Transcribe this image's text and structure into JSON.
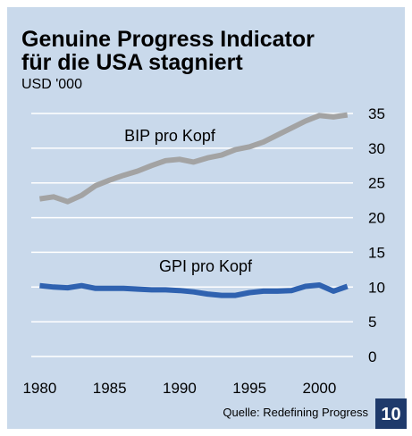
{
  "chart_data": {
    "type": "line",
    "title": [
      "Genuine Progress Indicator",
      "für die USA stagniert"
    ],
    "subtitle": "USD '000",
    "x": [
      1980,
      1981,
      1982,
      1983,
      1984,
      1985,
      1986,
      1987,
      1988,
      1989,
      1990,
      1991,
      1992,
      1993,
      1994,
      1995,
      1996,
      1997,
      1998,
      1999,
      2000,
      2001,
      2002
    ],
    "series": [
      {
        "name": "BIP pro Kopf",
        "color": "#a3a3a3",
        "values": [
          22.7,
          23.0,
          22.3,
          23.2,
          24.6,
          25.4,
          26.1,
          26.7,
          27.5,
          28.2,
          28.4,
          28.0,
          28.6,
          29.0,
          29.8,
          30.2,
          30.9,
          31.9,
          32.9,
          33.9,
          34.7,
          34.5,
          34.8
        ]
      },
      {
        "name": "GPI pro Kopf",
        "color": "#2f62b0",
        "values": [
          10.2,
          10.0,
          9.9,
          10.2,
          9.8,
          9.8,
          9.8,
          9.7,
          9.6,
          9.6,
          9.5,
          9.3,
          9.0,
          8.8,
          8.8,
          9.2,
          9.4,
          9.4,
          9.5,
          10.1,
          10.3,
          9.4,
          10.1
        ]
      }
    ],
    "xlim": [
      1979.4,
      2002.4
    ],
    "xticks": [
      1980,
      1985,
      1990,
      1995,
      2000
    ],
    "ylim": [
      0,
      35
    ],
    "yticks": [
      0,
      5,
      10,
      15,
      20,
      25,
      30,
      35
    ],
    "grid": true,
    "y_axis_side": "right",
    "source": "Quelle: Redefining Progress",
    "page_number": "10"
  }
}
